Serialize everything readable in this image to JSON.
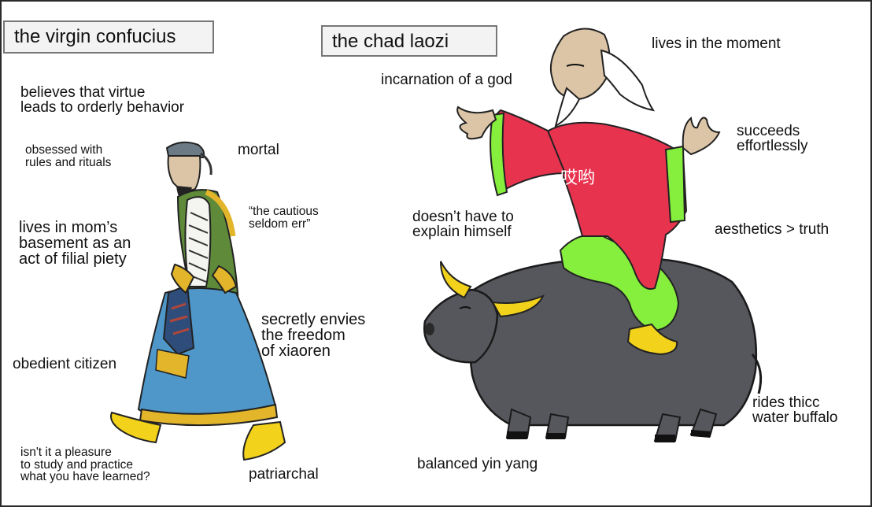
{
  "left_title": "the virgin confucius",
  "right_title": "the chad laozi",
  "left_labels": {
    "virtue": "believes that virtue\nleads to orderly behavior",
    "rules": "obsessed with\nrules and rituals",
    "mortal": "mortal",
    "cautious": "“the cautious\nseldom err”",
    "basement": "lives in mom’s\nbasement as an\nact of filial piety",
    "envies": "secretly envies\nthe freedom\nof xiaoren",
    "obedient": "obedient citizen",
    "pleasure": "isn't it a pleasure\nto study and practice\nwhat you have learned?",
    "patriarchal": "patriarchal"
  },
  "right_labels": {
    "moment": "lives in the moment",
    "god": "incarnation of a god",
    "succeeds": "succeeds\neffortlessly",
    "explain": "doesn’t have to\nexplain himself",
    "aesthetics": "aesthetics > truth",
    "yinyang": "balanced yin yang",
    "buffalo": "rides thicc\nwater buffalo"
  },
  "robe_text": "哎哟",
  "colors": {
    "laozi_robe": "#e8334f",
    "laozi_pants": "#86ee3c",
    "buffalo": "#55575c",
    "horns": "#f2d21a",
    "confucius_coat": "#5e8a3a",
    "confucius_skirt": "#4f97c9",
    "boots": "#f2d21a"
  }
}
